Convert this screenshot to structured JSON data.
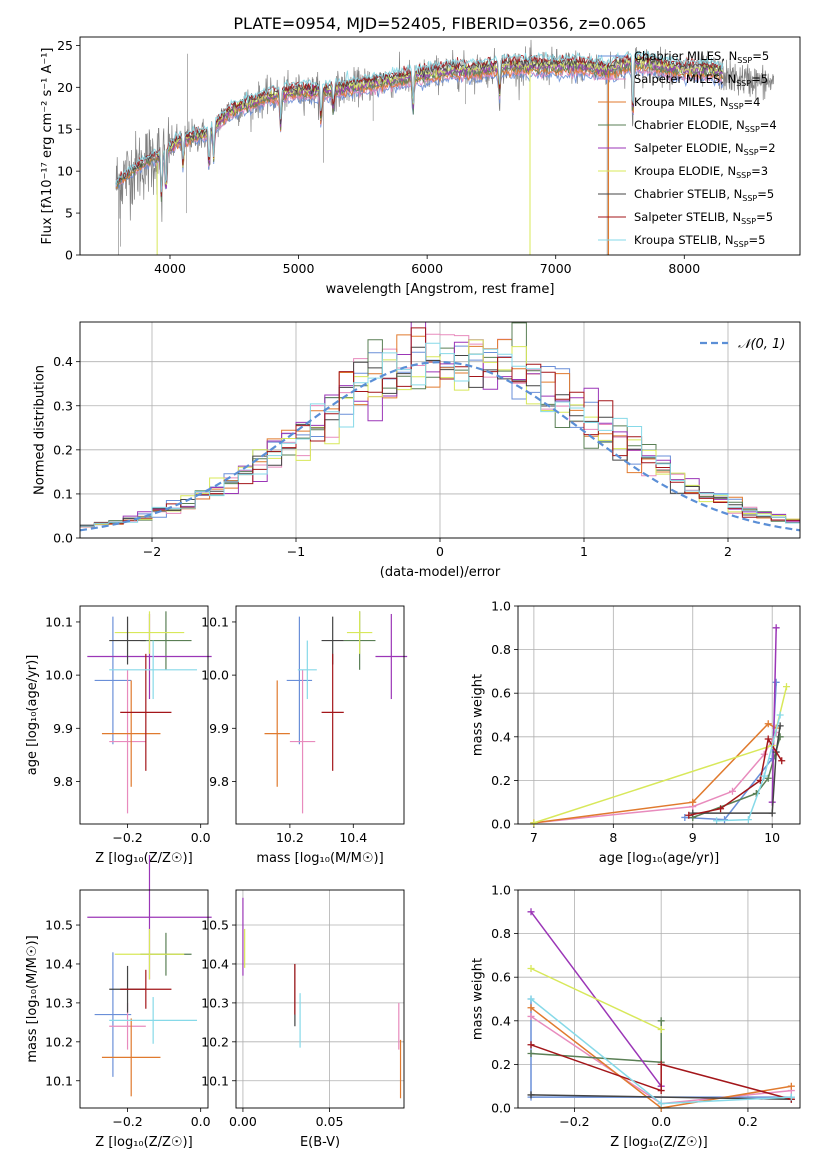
{
  "figure": {
    "title": "PLATE=0954, MJD=52405, FIBERID=0356, z=0.065"
  },
  "colors": {
    "Chabrier MILES": "#6a8fd8",
    "Salpeter MILES": "#e88bbd",
    "Kroupa MILES": "#e07a2e",
    "Chabrier ELODIE": "#5a7f55",
    "Salpeter ELODIE": "#9b36b7",
    "Kroupa ELODIE": "#d8e85a",
    "Chabrier STELIB": "#444444",
    "Salpeter STELIB": "#a3161a",
    "Kroupa STELIB": "#86d9e8",
    "data": "#808080",
    "normal": "#5b8fd6"
  },
  "chart_data": [
    {
      "id": "spectrum",
      "type": "line",
      "title": "PLATE=0954, MJD=52405, FIBERID=0356, z=0.065",
      "xlabel": "wavelength [Angstrom, rest frame]",
      "ylabel": "Flux [fλ10⁻¹⁷ erg cm⁻² s⁻¹ A⁻¹]",
      "xlim": [
        3300,
        8900
      ],
      "ylim": [
        0,
        26
      ],
      "xticks": [
        4000,
        5000,
        6000,
        7000,
        8000
      ],
      "yticks": [
        0,
        5,
        10,
        15,
        20,
        25
      ],
      "legend_position": "right",
      "legend": [
        {
          "name": "Chabrier MILES",
          "label": "Chabrier MILES, N",
          "sub": "SSP",
          "eq": "=5"
        },
        {
          "name": "Salpeter MILES",
          "label": "Salpeter MILES, N",
          "sub": "SSP",
          "eq": "=5"
        },
        {
          "name": "Kroupa MILES",
          "label": "Kroupa MILES, N",
          "sub": "SSP",
          "eq": "=4"
        },
        {
          "name": "Chabrier ELODIE",
          "label": "Chabrier ELODIE, N",
          "sub": "SSP",
          "eq": "=4"
        },
        {
          "name": "Salpeter ELODIE",
          "label": "Salpeter ELODIE, N",
          "sub": "SSP",
          "eq": "=2"
        },
        {
          "name": "Kroupa ELODIE",
          "label": "Kroupa ELODIE, N",
          "sub": "SSP",
          "eq": "=3"
        },
        {
          "name": "Chabrier STELIB",
          "label": "Chabrier STELIB, N",
          "sub": "SSP",
          "eq": "=5"
        },
        {
          "name": "Salpeter STELIB",
          "label": "Salpeter STELIB, N",
          "sub": "SSP",
          "eq": "=5"
        },
        {
          "name": "Kroupa STELIB",
          "label": "Kroupa STELIB, N",
          "sub": "SSP",
          "eq": "=5"
        }
      ],
      "continuum": {
        "x": [
          3580,
          3700,
          3850,
          3950,
          4050,
          4150,
          4300,
          4450,
          4600,
          4800,
          5000,
          5200,
          5400,
          5600,
          5800,
          6000,
          6200,
          6400,
          6600,
          6800,
          7000,
          7200,
          7400,
          7600,
          7800,
          8000,
          8200,
          8400,
          8700
        ],
        "y": [
          8.5,
          10.0,
          11.5,
          12.0,
          13.5,
          14.0,
          14.5,
          17.0,
          18.0,
          19.0,
          19.5,
          19.5,
          20.0,
          20.5,
          21.0,
          21.5,
          22.0,
          22.0,
          22.5,
          22.5,
          22.5,
          22.5,
          22.0,
          23.0,
          22.5,
          22.0,
          22.0,
          21.0,
          20.5
        ]
      }
    },
    {
      "id": "residuals",
      "type": "histogram",
      "xlabel": "(data-model)/error",
      "ylabel": "Normed distribution",
      "xlim": [
        -2.5,
        2.5
      ],
      "ylim": [
        0,
        0.49
      ],
      "xticks": [
        -2,
        -1,
        0,
        1,
        2
      ],
      "yticks": [
        0.0,
        0.1,
        0.2,
        0.3,
        0.4
      ],
      "grid": true,
      "legend_position": "top-right",
      "normal_curve": {
        "label": "𝒩(0, 1)",
        "mean": 0,
        "sigma": 1
      },
      "bins": {
        "start": -2.5,
        "width": 0.1,
        "count": 50
      }
    },
    {
      "id": "age-vs-Z",
      "type": "errorbar",
      "xlabel": "Z [log₁₀(Z/Z☉)]",
      "ylabel": "age  [log₁₀(age/yr)]",
      "xlim": [
        -0.33,
        0.02
      ],
      "ylim": [
        9.72,
        10.13
      ],
      "xticks": [
        -0.2,
        0.0
      ],
      "yticks": [
        9.8,
        9.9,
        10.0,
        10.1
      ],
      "points": [
        {
          "name": "Chabrier MILES",
          "x": -0.24,
          "xerr": 0.05,
          "y": 9.99,
          "yerr": 0.12
        },
        {
          "name": "Salpeter MILES",
          "x": -0.2,
          "xerr": 0.05,
          "y": 9.875,
          "yerr": 0.135
        },
        {
          "name": "Kroupa MILES",
          "x": -0.19,
          "xerr": 0.08,
          "y": 9.89,
          "yerr": 0.1
        },
        {
          "name": "Chabrier ELODIE",
          "x": -0.095,
          "xerr": 0.07,
          "y": 10.065,
          "yerr": 0.055
        },
        {
          "name": "Salpeter ELODIE",
          "x": -0.14,
          "xerr": 0.17,
          "y": 10.035,
          "yerr": 0.08
        },
        {
          "name": "Kroupa ELODIE",
          "x": -0.14,
          "xerr": 0.095,
          "y": 10.08,
          "yerr": 0.04
        },
        {
          "name": "Chabrier STELIB",
          "x": -0.2,
          "xerr": 0.05,
          "y": 10.065,
          "yerr": 0.045
        },
        {
          "name": "Salpeter STELIB",
          "x": -0.15,
          "xerr": 0.07,
          "y": 9.93,
          "yerr": 0.11
        },
        {
          "name": "Kroupa STELIB",
          "x": -0.13,
          "xerr": 0.12,
          "y": 10.01,
          "yerr": 0.055
        }
      ]
    },
    {
      "id": "age-vs-mass",
      "type": "errorbar",
      "xlabel": "mass [log₁₀(M/M☉)]",
      "ylabel": "",
      "xlim": [
        10.03,
        10.56
      ],
      "ylim": [
        9.72,
        10.13
      ],
      "xticks": [
        10.2,
        10.4
      ],
      "yticks": [
        9.8,
        9.9,
        10.0,
        10.1
      ],
      "points": [
        {
          "name": "Chabrier MILES",
          "x": 10.23,
          "xerr": 0.04,
          "y": 9.99,
          "yerr": 0.12
        },
        {
          "name": "Salpeter MILES",
          "x": 10.24,
          "xerr": 0.04,
          "y": 9.875,
          "yerr": 0.135
        },
        {
          "name": "Kroupa MILES",
          "x": 10.16,
          "xerr": 0.04,
          "y": 9.89,
          "yerr": 0.1
        },
        {
          "name": "Chabrier ELODIE",
          "x": 10.42,
          "xerr": 0.05,
          "y": 10.065,
          "yerr": 0.055
        },
        {
          "name": "Salpeter ELODIE",
          "x": 10.52,
          "xerr": 0.05,
          "y": 10.035,
          "yerr": 0.08
        },
        {
          "name": "Kroupa ELODIE",
          "x": 10.42,
          "xerr": 0.04,
          "y": 10.08,
          "yerr": 0.04
        },
        {
          "name": "Chabrier STELIB",
          "x": 10.335,
          "xerr": 0.035,
          "y": 10.065,
          "yerr": 0.045
        },
        {
          "name": "Salpeter STELIB",
          "x": 10.335,
          "xerr": 0.035,
          "y": 9.93,
          "yerr": 0.11
        },
        {
          "name": "Kroupa STELIB",
          "x": 10.255,
          "xerr": 0.03,
          "y": 10.01,
          "yerr": 0.055
        }
      ]
    },
    {
      "id": "weight-vs-age",
      "type": "line",
      "xlabel": "age  [log₁₀(age/yr)]",
      "ylabel": "mass weight",
      "xlim": [
        6.8,
        10.35
      ],
      "ylim": [
        0,
        1.0
      ],
      "xticks": [
        7,
        8,
        9,
        10
      ],
      "yticks": [
        0.0,
        0.2,
        0.4,
        0.6,
        0.8,
        1.0
      ],
      "grid": true,
      "series": [
        {
          "name": "Chabrier MILES",
          "x": [
            8.9,
            9.4,
            10.0,
            10.05
          ],
          "y": [
            0.03,
            0.02,
            0.3,
            0.65
          ]
        },
        {
          "name": "Salpeter MILES",
          "x": [
            7.0,
            9.0,
            9.5,
            9.9,
            10.05
          ],
          "y": [
            0.005,
            0.08,
            0.15,
            0.32,
            0.42
          ]
        },
        {
          "name": "Kroupa MILES",
          "x": [
            7.0,
            9.0,
            9.95,
            10.05
          ],
          "y": [
            0.005,
            0.1,
            0.46,
            0.44
          ]
        },
        {
          "name": "Chabrier ELODIE",
          "x": [
            9.0,
            9.8,
            9.95,
            10.1
          ],
          "y": [
            0.03,
            0.14,
            0.21,
            0.4
          ]
        },
        {
          "name": "Salpeter ELODIE",
          "x": [
            10.0,
            10.05
          ],
          "y": [
            0.1,
            0.9
          ]
        },
        {
          "name": "Kroupa ELODIE",
          "x": [
            7.0,
            10.0,
            10.18
          ],
          "y": [
            0.005,
            0.36,
            0.63
          ]
        },
        {
          "name": "Chabrier STELIB",
          "x": [
            9.0,
            10.0,
            10.05,
            10.1
          ],
          "y": [
            0.05,
            0.05,
            0.33,
            0.45
          ]
        },
        {
          "name": "Salpeter STELIB",
          "x": [
            8.95,
            9.35,
            9.85,
            9.95,
            10.12
          ],
          "y": [
            0.04,
            0.07,
            0.2,
            0.39,
            0.29
          ]
        },
        {
          "name": "Kroupa STELIB",
          "x": [
            9.3,
            9.7,
            9.9,
            10.1
          ],
          "y": [
            0.015,
            0.02,
            0.22,
            0.5
          ]
        }
      ]
    },
    {
      "id": "mass-vs-Z",
      "type": "errorbar",
      "xlabel": "Z [log₁₀(Z/Z☉)]",
      "ylabel": "mass [log₁₀(M/M☉)]",
      "xlim": [
        -0.33,
        0.02
      ],
      "ylim": [
        10.03,
        10.59
      ],
      "xticks": [
        -0.2,
        0.0
      ],
      "yticks": [
        10.1,
        10.2,
        10.3,
        10.4,
        10.5
      ],
      "points": [
        {
          "name": "Chabrier MILES",
          "x": -0.24,
          "xerr": 0.05,
          "y": 10.27,
          "yerr": 0.16
        },
        {
          "name": "Salpeter MILES",
          "x": -0.2,
          "xerr": 0.05,
          "y": 10.24,
          "yerr": 0.06
        },
        {
          "name": "Kroupa MILES",
          "x": -0.19,
          "xerr": 0.08,
          "y": 10.16,
          "yerr": 0.1
        },
        {
          "name": "Chabrier ELODIE",
          "x": -0.095,
          "xerr": 0.07,
          "y": 10.425,
          "yerr": 0.055
        },
        {
          "name": "Salpeter ELODIE",
          "x": -0.14,
          "xerr": 0.17,
          "y": 10.52,
          "yerr": 0.16
        },
        {
          "name": "Kroupa ELODIE",
          "x": -0.14,
          "xerr": 0.095,
          "y": 10.425,
          "yerr": 0.065
        },
        {
          "name": "Chabrier STELIB",
          "x": -0.2,
          "xerr": 0.05,
          "y": 10.335,
          "yerr": 0.06
        },
        {
          "name": "Salpeter STELIB",
          "x": -0.15,
          "xerr": 0.07,
          "y": 10.335,
          "yerr": 0.05
        },
        {
          "name": "Kroupa STELIB",
          "x": -0.13,
          "xerr": 0.12,
          "y": 10.255,
          "yerr": 0.06
        }
      ]
    },
    {
      "id": "mass-vs-ebv",
      "type": "errorbar",
      "xlabel": "E(B-V)",
      "ylabel": "",
      "xlim": [
        -0.004,
        0.093
      ],
      "ylim": [
        10.03,
        10.59
      ],
      "xticks": [
        0.0,
        0.05
      ],
      "yticks": [
        10.1,
        10.2,
        10.3,
        10.4,
        10.5
      ],
      "grid": true,
      "points": [
        {
          "name": "Salpeter ELODIE",
          "x": 0.0,
          "xerr": 0,
          "y": 10.47,
          "yerr": 0.1
        },
        {
          "name": "Kroupa ELODIE",
          "x": 0.001,
          "xerr": 0,
          "y": 10.44,
          "yerr": 0.05
        },
        {
          "name": "Chabrier STELIB",
          "x": 0.03,
          "xerr": 0,
          "y": 10.32,
          "yerr": 0.08
        },
        {
          "name": "Salpeter STELIB",
          "x": 0.03,
          "xerr": 0,
          "y": 10.335,
          "yerr": 0.065
        },
        {
          "name": "Kroupa STELIB",
          "x": 0.033,
          "xerr": 0,
          "y": 10.255,
          "yerr": 0.07
        },
        {
          "name": "Salpeter MILES",
          "x": 0.09,
          "xerr": 0,
          "y": 10.24,
          "yerr": 0.06
        },
        {
          "name": "Kroupa MILES",
          "x": 0.091,
          "xerr": 0,
          "y": 10.13,
          "yerr": 0.075
        }
      ]
    },
    {
      "id": "weight-vs-Z",
      "type": "line",
      "xlabel": "Z [log₁₀(Z/Z☉)]",
      "ylabel": "mass weight",
      "xlim": [
        -0.33,
        0.32
      ],
      "ylim": [
        0,
        1.0
      ],
      "xticks": [
        -0.2,
        0.0,
        0.2
      ],
      "yticks": [
        0.0,
        0.2,
        0.4,
        0.6,
        0.8,
        1.0
      ],
      "grid": true,
      "series": [
        {
          "name": "Chabrier MILES",
          "x": [
            -0.3,
            -0.3,
            0.3
          ],
          "y": [
            0.5,
            0.05,
            0.05
          ]
        },
        {
          "name": "Salpeter MILES",
          "x": [
            -0.3,
            0.0,
            0.3
          ],
          "y": [
            0.42,
            0.02,
            0.08
          ]
        },
        {
          "name": "Kroupa MILES",
          "x": [
            -0.3,
            0.0,
            0.3
          ],
          "y": [
            0.46,
            0.0,
            0.1
          ]
        },
        {
          "name": "Chabrier ELODIE",
          "x": [
            -0.3,
            0.0,
            0.0
          ],
          "y": [
            0.25,
            0.21,
            0.4
          ]
        },
        {
          "name": "Salpeter ELODIE",
          "x": [
            -0.3,
            0.0
          ],
          "y": [
            0.9,
            0.1
          ]
        },
        {
          "name": "Kroupa ELODIE",
          "x": [
            -0.3,
            0.0
          ],
          "y": [
            0.64,
            0.36
          ]
        },
        {
          "name": "Chabrier STELIB",
          "x": [
            -0.3,
            0.3
          ],
          "y": [
            0.06,
            0.04
          ]
        },
        {
          "name": "Salpeter STELIB",
          "x": [
            -0.3,
            0.0,
            0.0,
            0.3
          ],
          "y": [
            0.29,
            0.08,
            0.2,
            0.04
          ]
        },
        {
          "name": "Kroupa STELIB",
          "x": [
            -0.3,
            0.0,
            0.3
          ],
          "y": [
            0.5,
            0.02,
            0.05
          ]
        }
      ]
    }
  ]
}
